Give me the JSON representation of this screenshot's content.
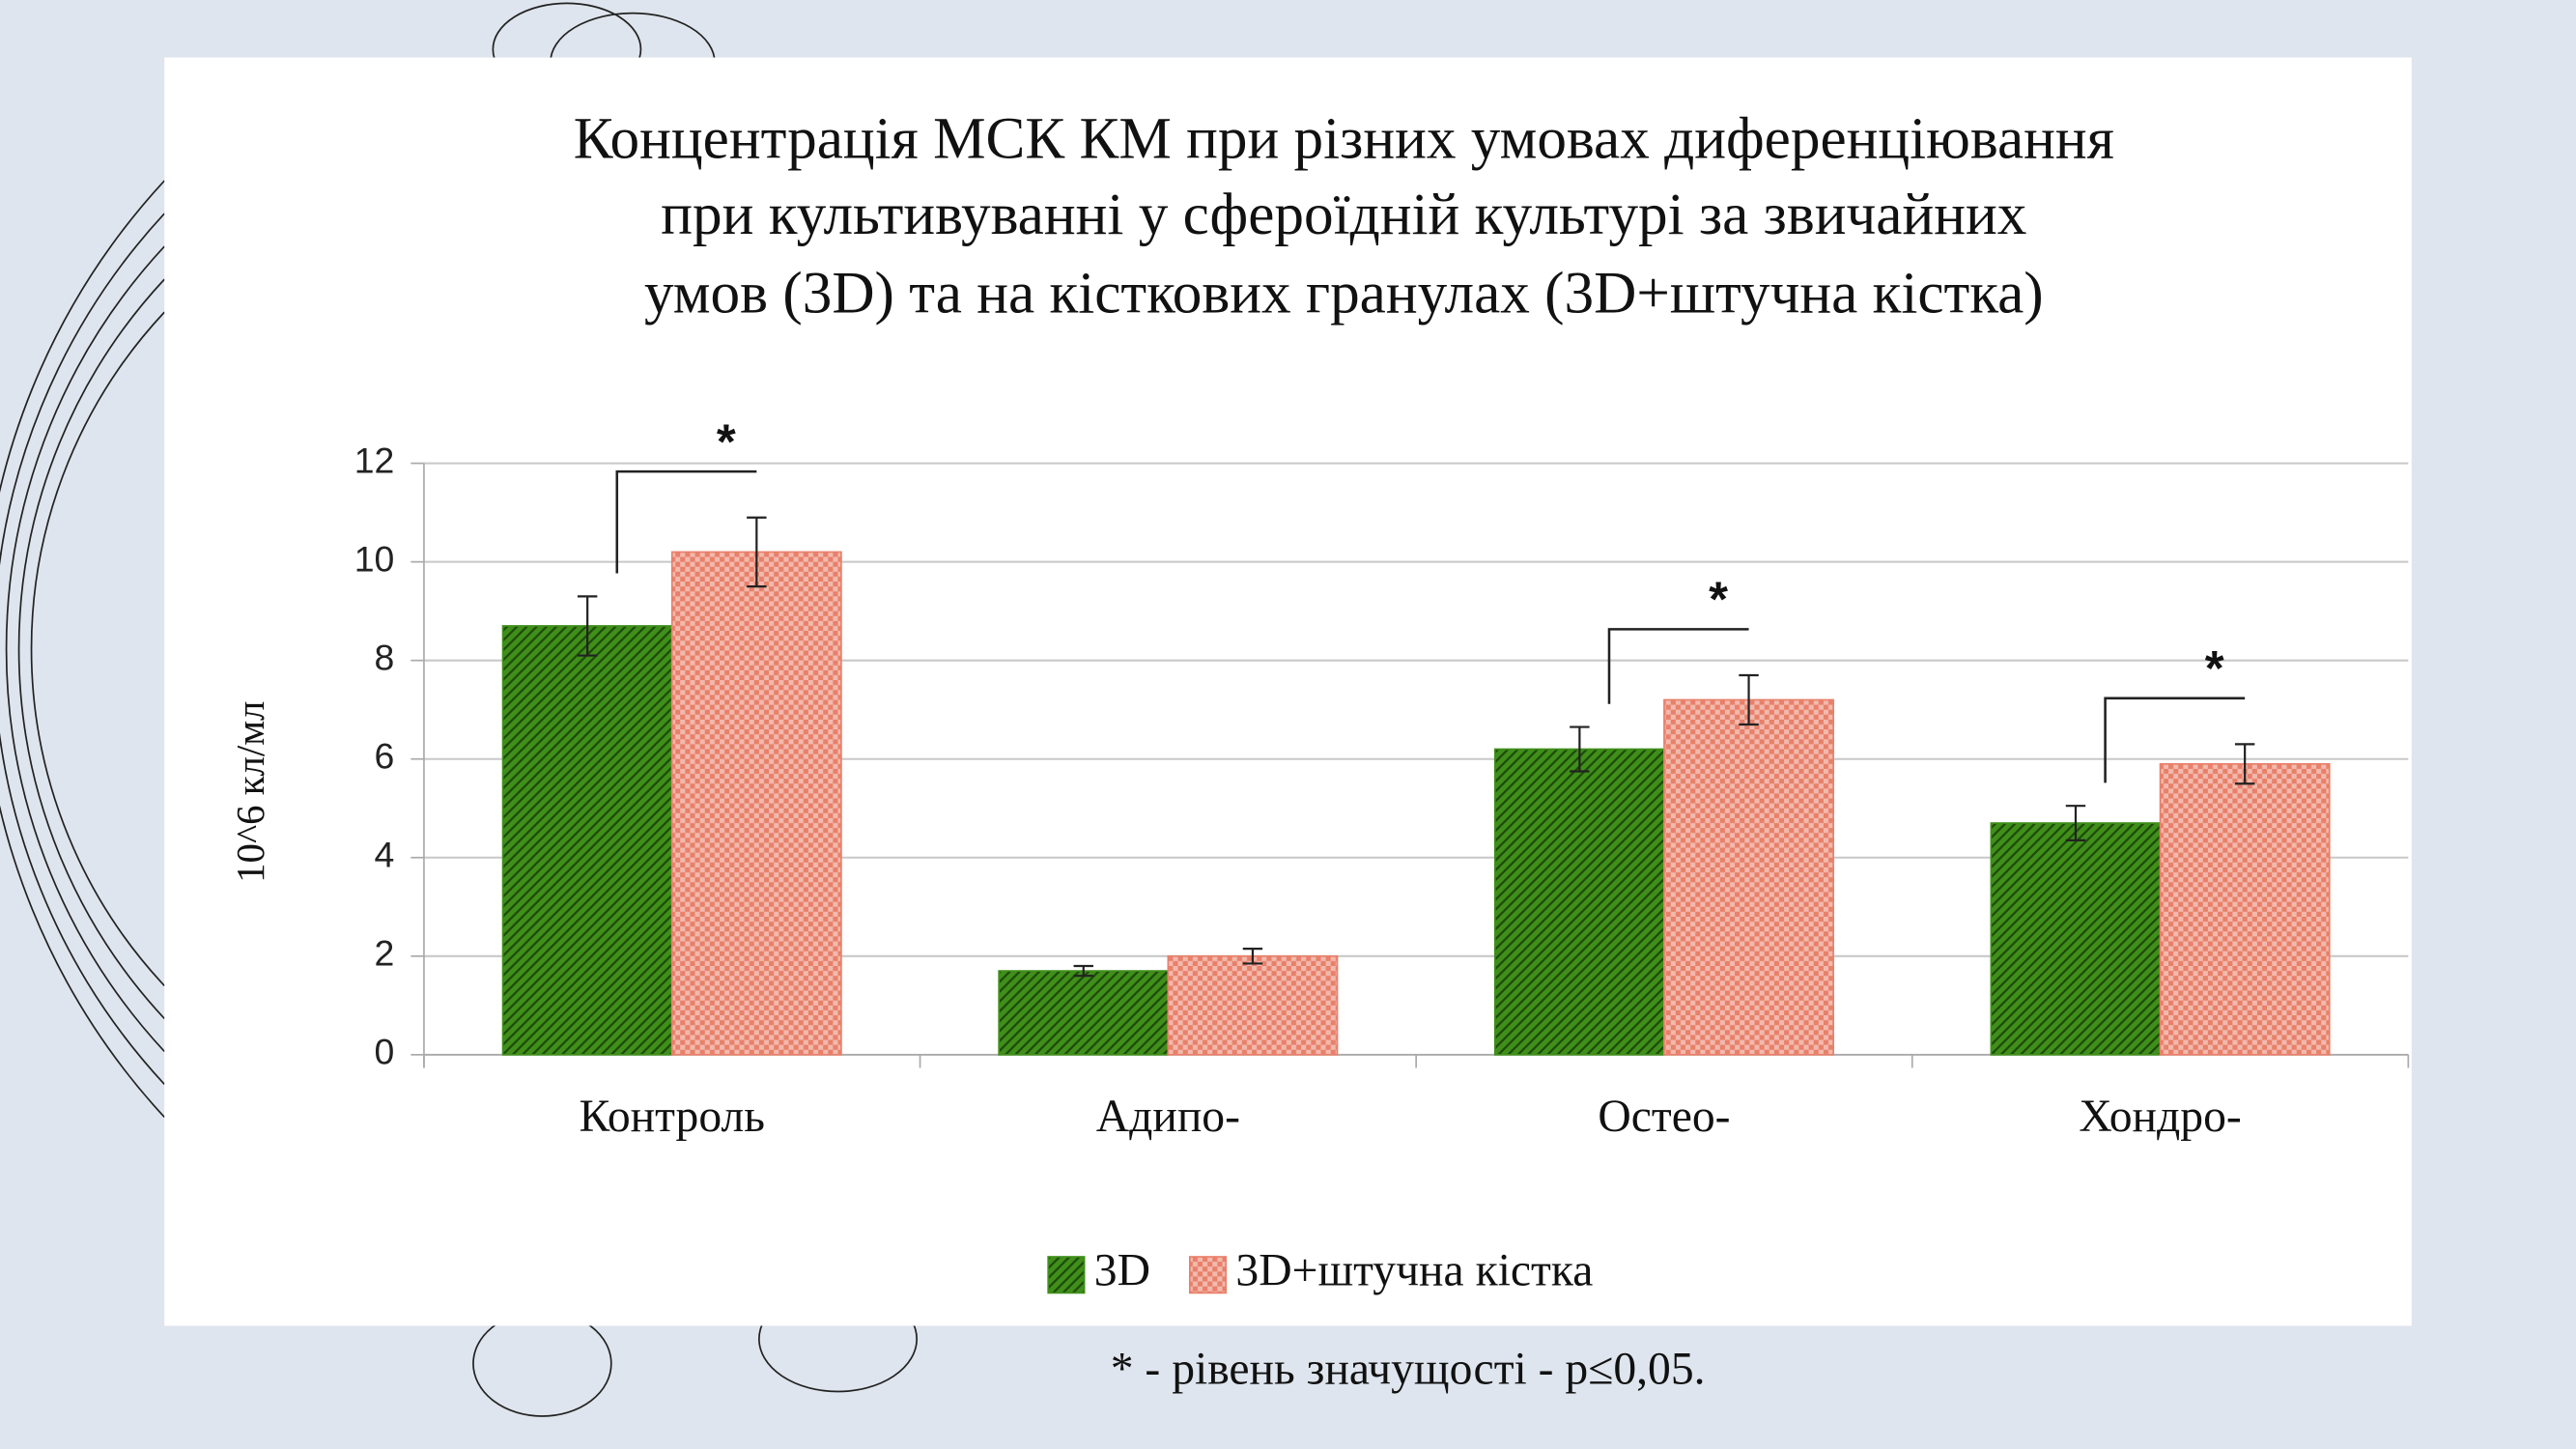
{
  "chart_data": {
    "type": "bar",
    "title": [
      "Концентрація МСК КМ при різних умовах диференціювання",
      "при культивуванні у сфероїдній культурі за звичайних",
      "умов (3D) та на кісткових гранулах (3D+штучна кістка)"
    ],
    "y_label": "10^6 кл/мл",
    "categories": [
      "Контроль",
      "Адипо-",
      "Остео-",
      "Хондро-"
    ],
    "series": [
      {
        "name": "3D",
        "color": "#3f8f1a",
        "values": [
          8.7,
          1.7,
          6.2,
          4.7
        ],
        "errors": [
          0.6,
          0.1,
          0.45,
          0.35
        ]
      },
      {
        "name": "3D+штучна кістка",
        "color": "#e8806a",
        "values": [
          10.2,
          2.0,
          7.2,
          5.9
        ],
        "errors": [
          0.7,
          0.15,
          0.5,
          0.4
        ]
      }
    ],
    "ylim": [
      0,
      12
    ],
    "yticks": [
      0,
      2,
      4,
      6,
      8,
      10,
      12
    ],
    "grid": true,
    "legend": "bottom",
    "significance": [
      {
        "category": "Контроль",
        "label": "*"
      },
      {
        "category": "Остео-",
        "label": "*"
      },
      {
        "category": "Хондро-",
        "label": "*"
      }
    ],
    "footnote": "* - рівень значущості - p≤0,05."
  }
}
